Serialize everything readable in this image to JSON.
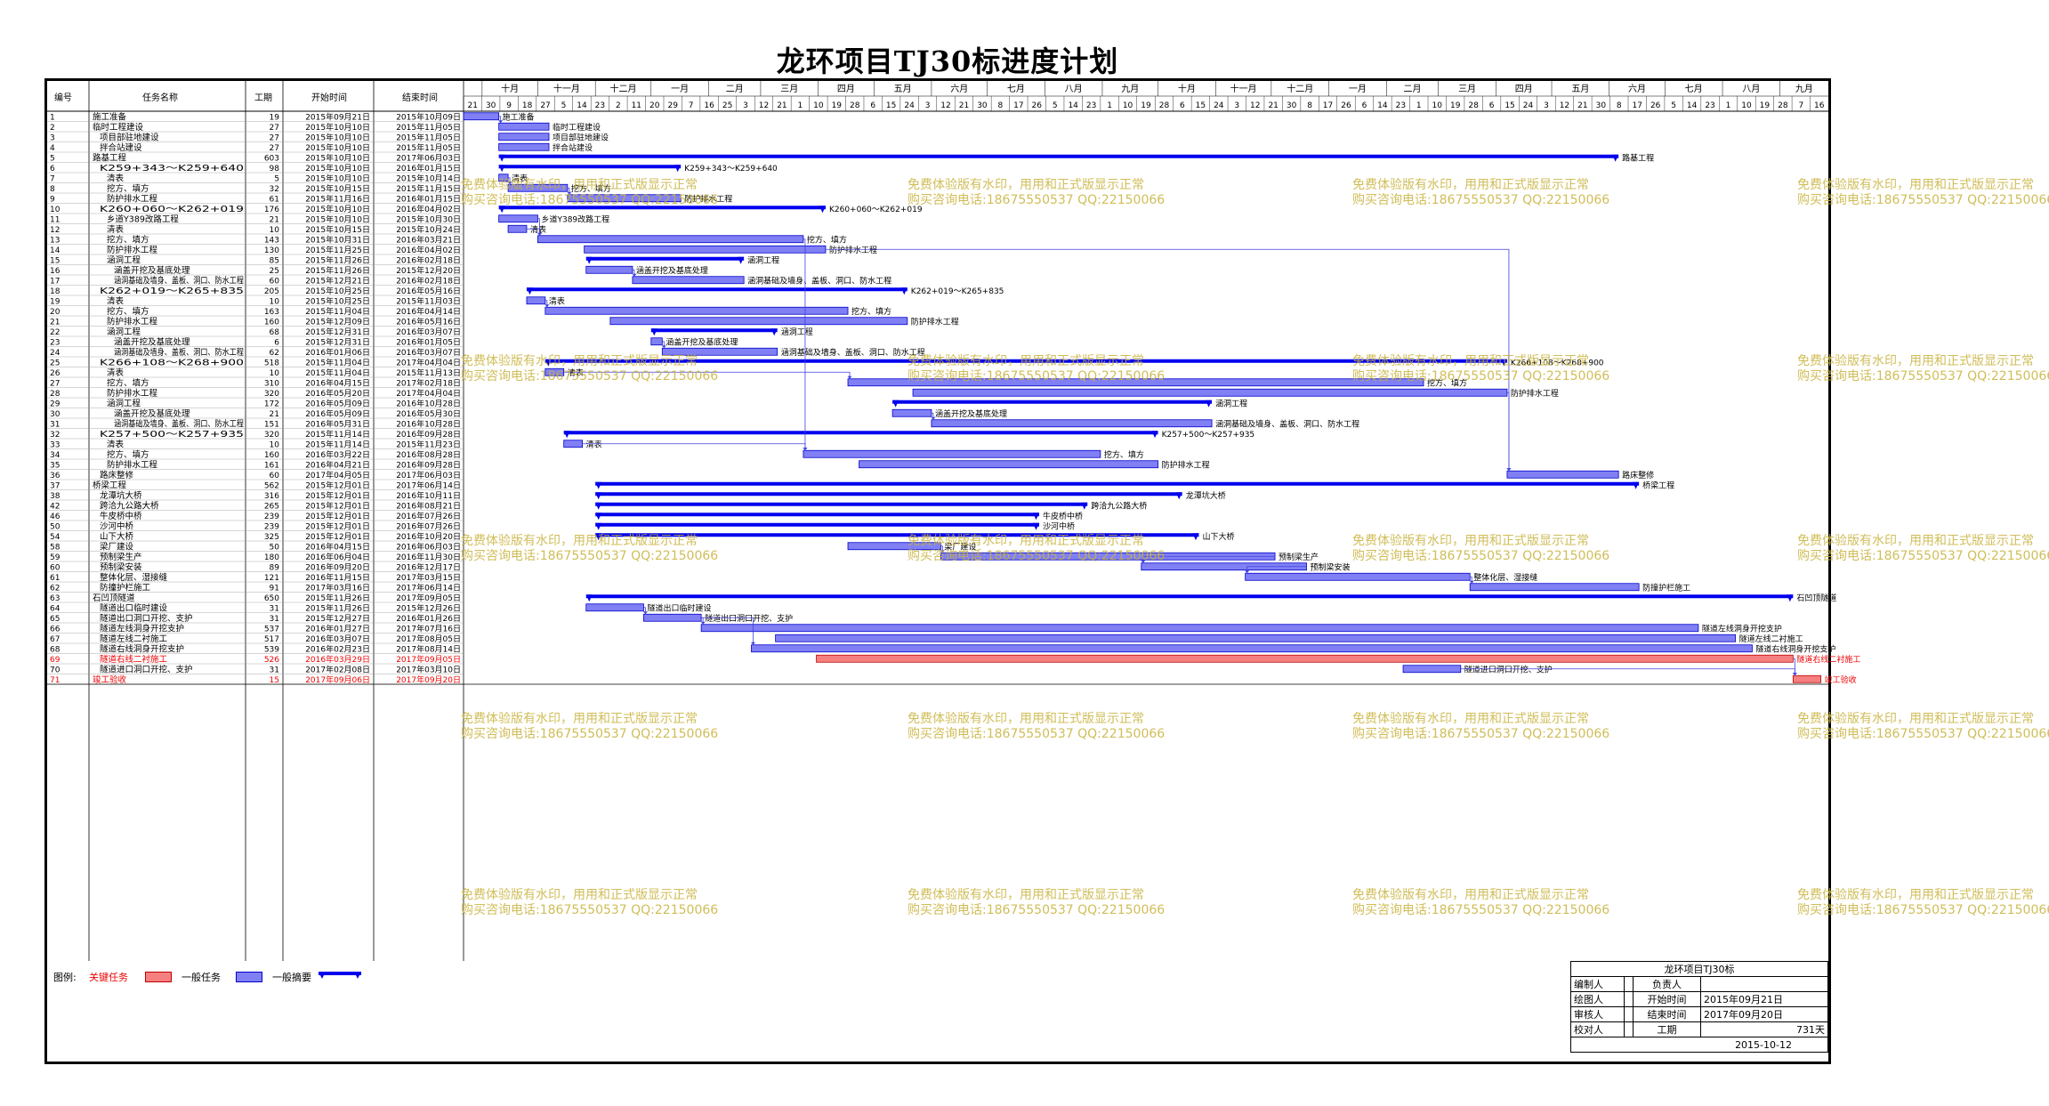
{
  "title": "龙环项目TJ30标进度计划",
  "header": {
    "id": "编号",
    "name": "任务名称",
    "duration": "工期",
    "start": "开始时间",
    "end": "结束时间"
  },
  "timescale": {
    "months": [
      "十月",
      "十一月",
      "十二月",
      "一月",
      "二月",
      "三月",
      "四月",
      "五月",
      "六月",
      "七月",
      "八月",
      "九月",
      "十月",
      "十一月",
      "十二月",
      "一月",
      "二月",
      "三月",
      "四月",
      "五月",
      "六月",
      "七月",
      "八月",
      "九月",
      "十月"
    ],
    "days": [
      "21",
      "30",
      "9",
      "18",
      "27",
      "5",
      "14",
      "23",
      "2",
      "11",
      "20",
      "29",
      "7",
      "16",
      "25",
      "3",
      "12",
      "21",
      "1",
      "10",
      "19",
      "28",
      "6",
      "15",
      "24",
      "3",
      "12",
      "21",
      "30",
      "8",
      "17",
      "26",
      "5",
      "14",
      "23",
      "1",
      "10",
      "19",
      "28",
      "6",
      "15",
      "24",
      "3",
      "12",
      "21",
      "30",
      "8",
      "17",
      "26",
      "6",
      "14",
      "23",
      "1",
      "10",
      "19",
      "28",
      "6",
      "15",
      "24",
      "3",
      "12",
      "21",
      "30",
      "8",
      "17",
      "26",
      "5",
      "14",
      "23",
      "1",
      "10",
      "19",
      "28",
      "7",
      "16"
    ]
  },
  "tasks": [
    {
      "id": "1",
      "name": "施工准备",
      "dur": "19",
      "start": "2015年09月21日",
      "end": "2015年10月09日",
      "type": "normal",
      "lvl": 1,
      "s": 0,
      "e": 19
    },
    {
      "id": "2",
      "name": "临时工程建设",
      "dur": "27",
      "start": "2015年10月10日",
      "end": "2015年11月05日",
      "type": "normal",
      "lvl": 1,
      "s": 19,
      "e": 46
    },
    {
      "id": "3",
      "name": "项目部驻地建设",
      "dur": "27",
      "start": "2015年10月10日",
      "end": "2015年11月05日",
      "type": "normal",
      "lvl": 2,
      "s": 19,
      "e": 46
    },
    {
      "id": "4",
      "name": "拌合站建设",
      "dur": "27",
      "start": "2015年10月10日",
      "end": "2015年11月05日",
      "type": "normal",
      "lvl": 2,
      "s": 19,
      "e": 46
    },
    {
      "id": "5",
      "name": "路基工程",
      "dur": "603",
      "start": "2015年10月10日",
      "end": "2017年06月03日",
      "type": "summary",
      "lvl": 1,
      "s": 19,
      "e": 622
    },
    {
      "id": "6",
      "name": "K259+343～K259+640",
      "dur": "98",
      "start": "2015年10月10日",
      "end": "2016年01月15日",
      "type": "summary",
      "lvl": 2,
      "s": 19,
      "e": 117
    },
    {
      "id": "7",
      "name": "清表",
      "dur": "5",
      "start": "2015年10月10日",
      "end": "2015年10月14日",
      "type": "normal",
      "lvl": 3,
      "s": 19,
      "e": 24
    },
    {
      "id": "8",
      "name": "挖方、填方",
      "dur": "32",
      "start": "2015年10月15日",
      "end": "2015年11月15日",
      "type": "normal",
      "lvl": 3,
      "s": 24,
      "e": 56
    },
    {
      "id": "9",
      "name": "防护排水工程",
      "dur": "61",
      "start": "2015年11月16日",
      "end": "2016年01月15日",
      "type": "normal",
      "lvl": 3,
      "s": 56,
      "e": 117
    },
    {
      "id": "10",
      "name": "K260+060～K262+019",
      "dur": "176",
      "start": "2015年10月10日",
      "end": "2016年04月02日",
      "type": "summary",
      "lvl": 2,
      "s": 19,
      "e": 195
    },
    {
      "id": "11",
      "name": "乡道Y389改路工程",
      "dur": "21",
      "start": "2015年10月10日",
      "end": "2015年10月30日",
      "type": "normal",
      "lvl": 3,
      "s": 19,
      "e": 40
    },
    {
      "id": "12",
      "name": "清表",
      "dur": "10",
      "start": "2015年10月15日",
      "end": "2015年10月24日",
      "type": "normal",
      "lvl": 3,
      "s": 24,
      "e": 34
    },
    {
      "id": "13",
      "name": "挖方、填方",
      "dur": "143",
      "start": "2015年10月31日",
      "end": "2016年03月21日",
      "type": "normal",
      "lvl": 3,
      "s": 40,
      "e": 183
    },
    {
      "id": "14",
      "name": "防护排水工程",
      "dur": "130",
      "start": "2015年11月25日",
      "end": "2016年04月02日",
      "type": "normal",
      "lvl": 3,
      "s": 65,
      "e": 195
    },
    {
      "id": "15",
      "name": "涵洞工程",
      "dur": "85",
      "start": "2015年11月26日",
      "end": "2016年02月18日",
      "type": "summary",
      "lvl": 3,
      "s": 66,
      "e": 151
    },
    {
      "id": "16",
      "name": "涵盖开挖及基底处理",
      "dur": "25",
      "start": "2015年11月26日",
      "end": "2015年12月20日",
      "type": "normal",
      "lvl": 4,
      "s": 66,
      "e": 91
    },
    {
      "id": "17",
      "name": "涵洞基础及墙身、盖板、洞口、防水工程",
      "dur": "60",
      "start": "2015年12月21日",
      "end": "2016年02月18日",
      "type": "normal",
      "lvl": 4,
      "s": 91,
      "e": 151
    },
    {
      "id": "18",
      "name": "K262+019～K265+835",
      "dur": "205",
      "start": "2015年10月25日",
      "end": "2016年05月16日",
      "type": "summary",
      "lvl": 2,
      "s": 34,
      "e": 239
    },
    {
      "id": "19",
      "name": "清表",
      "dur": "10",
      "start": "2015年10月25日",
      "end": "2015年11月03日",
      "type": "normal",
      "lvl": 3,
      "s": 34,
      "e": 44
    },
    {
      "id": "20",
      "name": "挖方、填方",
      "dur": "163",
      "start": "2015年11月04日",
      "end": "2016年04月14日",
      "type": "normal",
      "lvl": 3,
      "s": 44,
      "e": 207
    },
    {
      "id": "21",
      "name": "防护排水工程",
      "dur": "160",
      "start": "2015年12月09日",
      "end": "2016年05月16日",
      "type": "normal",
      "lvl": 3,
      "s": 79,
      "e": 239
    },
    {
      "id": "22",
      "name": "涵洞工程",
      "dur": "68",
      "start": "2015年12月31日",
      "end": "2016年03月07日",
      "type": "summary",
      "lvl": 3,
      "s": 101,
      "e": 169
    },
    {
      "id": "23",
      "name": "涵盖开挖及基底处理",
      "dur": "6",
      "start": "2015年12月31日",
      "end": "2016年01月05日",
      "type": "normal",
      "lvl": 4,
      "s": 101,
      "e": 107
    },
    {
      "id": "24",
      "name": "涵洞基础及墙身、盖板、洞口、防水工程",
      "dur": "62",
      "start": "2016年01月06日",
      "end": "2016年03月07日",
      "type": "normal",
      "lvl": 4,
      "s": 107,
      "e": 169
    },
    {
      "id": "25",
      "name": "K266+108～K268+900",
      "dur": "518",
      "start": "2015年11月04日",
      "end": "2017年04月04日",
      "type": "summary",
      "lvl": 2,
      "s": 44,
      "e": 562
    },
    {
      "id": "26",
      "name": "清表",
      "dur": "10",
      "start": "2015年11月04日",
      "end": "2015年11月13日",
      "type": "normal",
      "lvl": 3,
      "s": 44,
      "e": 54
    },
    {
      "id": "27",
      "name": "挖方、填方",
      "dur": "310",
      "start": "2016年04月15日",
      "end": "2017年02月18日",
      "type": "normal",
      "lvl": 3,
      "s": 207,
      "e": 517
    },
    {
      "id": "28",
      "name": "防护排水工程",
      "dur": "320",
      "start": "2016年05月20日",
      "end": "2017年04月04日",
      "type": "normal",
      "lvl": 3,
      "s": 242,
      "e": 562
    },
    {
      "id": "29",
      "name": "涵洞工程",
      "dur": "172",
      "start": "2016年05月09日",
      "end": "2016年10月28日",
      "type": "summary",
      "lvl": 3,
      "s": 231,
      "e": 403
    },
    {
      "id": "30",
      "name": "涵盖开挖及基底处理",
      "dur": "21",
      "start": "2016年05月09日",
      "end": "2016年05月30日",
      "type": "normal",
      "lvl": 4,
      "s": 231,
      "e": 252
    },
    {
      "id": "31",
      "name": "涵洞基础及墙身、盖板、洞口、防水工程",
      "dur": "151",
      "start": "2016年05月31日",
      "end": "2016年10月28日",
      "type": "normal",
      "lvl": 4,
      "s": 252,
      "e": 403
    },
    {
      "id": "32",
      "name": "K257+500～K257+935",
      "dur": "320",
      "start": "2015年11月14日",
      "end": "2016年09月28日",
      "type": "summary",
      "lvl": 2,
      "s": 54,
      "e": 374
    },
    {
      "id": "33",
      "name": "清表",
      "dur": "10",
      "start": "2015年11月14日",
      "end": "2015年11月23日",
      "type": "normal",
      "lvl": 3,
      "s": 54,
      "e": 64
    },
    {
      "id": "34",
      "name": "挖方、填方",
      "dur": "160",
      "start": "2016年03月22日",
      "end": "2016年08月28日",
      "type": "normal",
      "lvl": 3,
      "s": 183,
      "e": 343
    },
    {
      "id": "35",
      "name": "防护排水工程",
      "dur": "161",
      "start": "2016年04月21日",
      "end": "2016年09月28日",
      "type": "normal",
      "lvl": 3,
      "s": 213,
      "e": 374
    },
    {
      "id": "36",
      "name": "路床整修",
      "dur": "60",
      "start": "2017年04月05日",
      "end": "2017年06月03日",
      "type": "normal",
      "lvl": 2,
      "s": 562,
      "e": 622
    },
    {
      "id": "37",
      "name": "桥梁工程",
      "dur": "562",
      "start": "2015年12月01日",
      "end": "2017年06月14日",
      "type": "summary",
      "lvl": 1,
      "s": 71,
      "e": 633
    },
    {
      "id": "38",
      "name": "龙潭坑大桥",
      "dur": "316",
      "start": "2015年12月01日",
      "end": "2016年10月11日",
      "type": "summary",
      "lvl": 2,
      "s": 71,
      "e": 387
    },
    {
      "id": "42",
      "name": "跨洽九公路大桥",
      "dur": "265",
      "start": "2015年12月01日",
      "end": "2016年08月21日",
      "type": "summary",
      "lvl": 2,
      "s": 71,
      "e": 336
    },
    {
      "id": "46",
      "name": "牛皮桥中桥",
      "dur": "239",
      "start": "2015年12月01日",
      "end": "2016年07月26日",
      "type": "summary",
      "lvl": 2,
      "s": 71,
      "e": 310
    },
    {
      "id": "50",
      "name": "沙河中桥",
      "dur": "239",
      "start": "2015年12月01日",
      "end": "2016年07月26日",
      "type": "summary",
      "lvl": 2,
      "s": 71,
      "e": 310
    },
    {
      "id": "54",
      "name": "山下大桥",
      "dur": "325",
      "start": "2015年12月01日",
      "end": "2016年10月20日",
      "type": "summary",
      "lvl": 2,
      "s": 71,
      "e": 396
    },
    {
      "id": "58",
      "name": "梁厂建设",
      "dur": "50",
      "start": "2016年04月15日",
      "end": "2016年06月03日",
      "type": "normal",
      "lvl": 2,
      "s": 207,
      "e": 257
    },
    {
      "id": "59",
      "name": "预制梁生产",
      "dur": "180",
      "start": "2016年06月04日",
      "end": "2016年11月30日",
      "type": "normal",
      "lvl": 2,
      "s": 257,
      "e": 437
    },
    {
      "id": "60",
      "name": "预制梁安装",
      "dur": "89",
      "start": "2016年09月20日",
      "end": "2016年12月17日",
      "type": "normal",
      "lvl": 2,
      "s": 365,
      "e": 454
    },
    {
      "id": "61",
      "name": "整体化层、湿接缝",
      "dur": "121",
      "start": "2016年11月15日",
      "end": "2017年03月15日",
      "type": "normal",
      "lvl": 2,
      "s": 421,
      "e": 542
    },
    {
      "id": "62",
      "name": "防撞护栏施工",
      "dur": "91",
      "start": "2017年03月16日",
      "end": "2017年06月14日",
      "type": "normal",
      "lvl": 2,
      "s": 542,
      "e": 633
    },
    {
      "id": "63",
      "name": "石凹顶隧道",
      "dur": "650",
      "start": "2015年11月26日",
      "end": "2017年09月05日",
      "type": "summary",
      "lvl": 1,
      "s": 66,
      "e": 716
    },
    {
      "id": "64",
      "name": "隧道出口临时建设",
      "dur": "31",
      "start": "2015年11月26日",
      "end": "2015年12月26日",
      "type": "normal",
      "lvl": 2,
      "s": 66,
      "e": 97
    },
    {
      "id": "65",
      "name": "隧道出口洞口开挖、支护",
      "dur": "31",
      "start": "2015年12月27日",
      "end": "2016年01月26日",
      "type": "normal",
      "lvl": 2,
      "s": 97,
      "e": 128
    },
    {
      "id": "66",
      "name": "隧道左线洞身开挖支护",
      "dur": "537",
      "start": "2016年01月27日",
      "end": "2017年07月16日",
      "type": "normal",
      "lvl": 2,
      "s": 128,
      "e": 665
    },
    {
      "id": "67",
      "name": "隧道左线二衬施工",
      "dur": "517",
      "start": "2016年03月07日",
      "end": "2017年08月05日",
      "type": "normal",
      "lvl": 2,
      "s": 168,
      "e": 685
    },
    {
      "id": "68",
      "name": "隧道右线洞身开挖支护",
      "dur": "539",
      "start": "2016年02月23日",
      "end": "2017年08月14日",
      "type": "normal",
      "lvl": 2,
      "s": 155,
      "e": 694
    },
    {
      "id": "69",
      "name": "隧道右线二衬施工",
      "dur": "526",
      "start": "2016年03月29日",
      "end": "2017年09月05日",
      "type": "critical",
      "lvl": 2,
      "s": 190,
      "e": 716
    },
    {
      "id": "70",
      "name": "隧道进口洞口开挖、支护",
      "dur": "31",
      "start": "2017年02月08日",
      "end": "2017年03月10日",
      "type": "normal",
      "lvl": 2,
      "s": 506,
      "e": 537
    },
    {
      "id": "71",
      "name": "竣工验收",
      "dur": "15",
      "start": "2017年09月06日",
      "end": "2017年09月20日",
      "type": "critical",
      "lvl": 1,
      "s": 716,
      "e": 731
    }
  ],
  "legend": {
    "label": "图例:",
    "critical": "关键任务",
    "normal": "一般任务",
    "summary": "一般摘要"
  },
  "watermark": {
    "line1": "免费体验版有水印，用用和正式版显示正常",
    "line2": "购买咨询电话:18675550537 QQ:22150066"
  },
  "info": {
    "title": "龙环项目TJ30标",
    "maker_label": "编制人",
    "owner_label": "负责人",
    "drawer_label": "绘图人",
    "start_label": "开始时间",
    "start_val": "2015年09月21日",
    "reviewer_label": "审核人",
    "end_label": "结束时间",
    "end_val": "2017年09月20日",
    "checker_label": "校对人",
    "dur_label": "工期",
    "dur_val": "731天",
    "date": "2015-10-12"
  },
  "colors": {
    "summary": "#0000ee",
    "normal_fill": "#8080f4",
    "critical_fill": "#f48080",
    "critical_text": "#ee0000",
    "link": "#4040e0"
  }
}
